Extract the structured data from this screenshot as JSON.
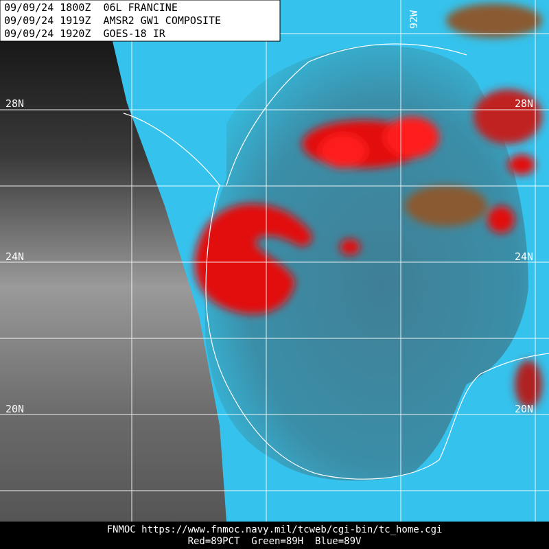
{
  "header": {
    "lines": [
      "09/09/24 1800Z  06L FRANCINE",
      "09/09/24 1919Z  AMSR2 GW1 COMPOSITE",
      "09/09/24 1920Z  GOES-18 IR"
    ]
  },
  "grid_labels": {
    "latitudes_left": [
      "28N",
      "24N",
      "20N"
    ],
    "latitudes_right": [
      "28N",
      "24N",
      "20N"
    ],
    "longitudes": [
      "92W"
    ]
  },
  "footer": {
    "lines": [
      "FNMOC https://www.fnmoc.navy.mil/tcweb/cgi-bin/tc_home.cgi",
      "Red=89PCT  Green=89H  Blue=89V"
    ]
  }
}
